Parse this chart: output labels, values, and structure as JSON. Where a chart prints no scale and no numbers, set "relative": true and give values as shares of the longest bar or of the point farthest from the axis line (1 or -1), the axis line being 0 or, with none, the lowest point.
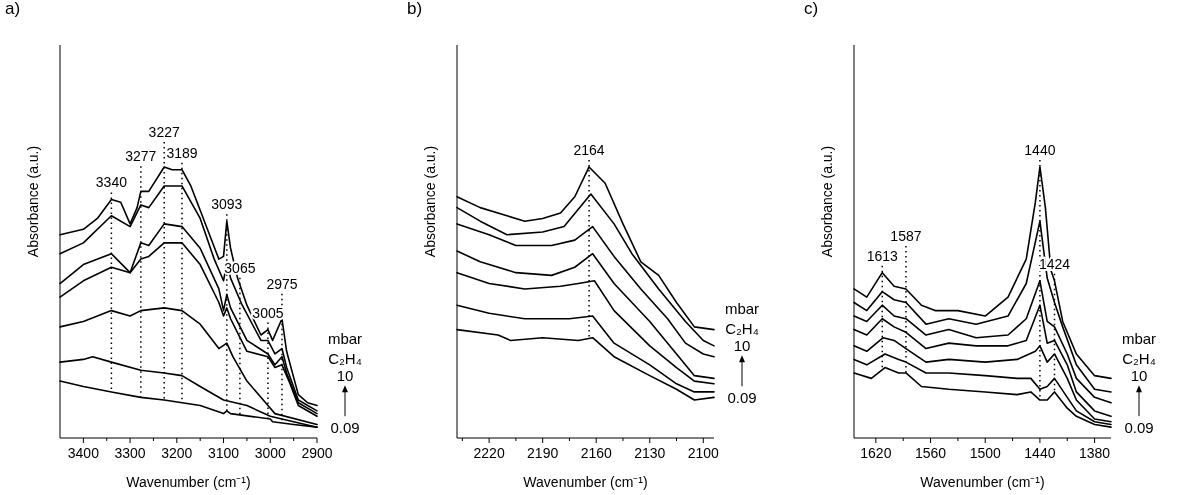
{
  "chart_data": [
    {
      "type": "line",
      "title": "a)",
      "xlabel": "Wavenumber (cm⁻¹)",
      "ylabel": "Absorbance (a.u.)",
      "legend_title": "mbar C₂H₄",
      "relative": true,
      "xlim": [
        3450,
        2900
      ],
      "xticks": [
        3400,
        {
          "value": 3350,
          "label": null
        },
        3300,
        {
          "value": 3250,
          "label": null
        },
        3200,
        {
          "value": 3150,
          "label": null
        },
        3100,
        {
          "value": 3050,
          "label": null
        },
        3000,
        {
          "value": 2950,
          "label": null
        },
        2900
      ],
      "ref_lines": [
        {
          "axis": "x",
          "value": 3340,
          "label": "3340",
          "line_style": "dotted"
        },
        {
          "axis": "x",
          "value": 3277,
          "label": "3277",
          "line_style": "dotted"
        },
        {
          "axis": "x",
          "value": 3227,
          "label": "3227",
          "line_style": "dotted"
        },
        {
          "axis": "x",
          "value": 3189,
          "label": "3189",
          "line_style": "dotted"
        },
        {
          "axis": "x",
          "value": 3093,
          "label": "3093",
          "line_style": "dotted"
        },
        {
          "axis": "x",
          "value": 3065,
          "label": "3065",
          "line_style": "dotted"
        },
        {
          "axis": "x",
          "value": 3005,
          "label": "3005",
          "line_style": "dotted"
        },
        {
          "axis": "x",
          "value": 2975,
          "label": "2975",
          "line_style": "dotted"
        }
      ],
      "series": [
        {
          "name": "0.09",
          "color": "#000000",
          "x": [
            3450,
            3400,
            3340,
            3277,
            3227,
            3150,
            3100,
            3093,
            3085,
            3000,
            2995,
            2950,
            2900
          ],
          "values": [
            0.21,
            0.19,
            0.17,
            0.15,
            0.14,
            0.12,
            0.09,
            0.1,
            0.09,
            0.07,
            0.06,
            0.05,
            0.04
          ]
        },
        {
          "color": "#000000",
          "x": [
            3450,
            3400,
            3380,
            3340,
            3277,
            3227,
            3189,
            3150,
            3100,
            3050,
            3000,
            2950,
            2900
          ],
          "values": [
            0.28,
            0.29,
            0.3,
            0.28,
            0.25,
            0.24,
            0.23,
            0.19,
            0.14,
            0.12,
            0.08,
            0.06,
            0.04
          ]
        },
        {
          "color": "#000000",
          "x": [
            3450,
            3400,
            3370,
            3340,
            3300,
            3277,
            3227,
            3189,
            3150,
            3110,
            3093,
            3080,
            3050,
            3010,
            3005,
            2990,
            2900
          ],
          "values": [
            0.41,
            0.43,
            0.45,
            0.47,
            0.45,
            0.47,
            0.48,
            0.47,
            0.42,
            0.33,
            0.35,
            0.3,
            0.21,
            0.13,
            0.12,
            0.09,
            0.05
          ]
        },
        {
          "color": "#000000",
          "x": [
            3450,
            3400,
            3340,
            3300,
            3277,
            3260,
            3227,
            3189,
            3150,
            3110,
            3100,
            3093,
            3085,
            3050,
            3005,
            2990,
            2975,
            2960,
            2940,
            2900
          ],
          "values": [
            0.52,
            0.58,
            0.63,
            0.61,
            0.66,
            0.67,
            0.72,
            0.72,
            0.64,
            0.5,
            0.45,
            0.48,
            0.44,
            0.32,
            0.3,
            0.26,
            0.27,
            0.21,
            0.12,
            0.08
          ]
        },
        {
          "color": "#000000",
          "x": [
            3450,
            3400,
            3340,
            3300,
            3277,
            3260,
            3227,
            3189,
            3150,
            3110,
            3100,
            3093,
            3085,
            3050,
            3005,
            2990,
            2975,
            2965,
            2940,
            2900
          ],
          "values": [
            0.57,
            0.64,
            0.68,
            0.61,
            0.72,
            0.71,
            0.79,
            0.78,
            0.7,
            0.55,
            0.47,
            0.53,
            0.48,
            0.36,
            0.31,
            0.27,
            0.3,
            0.24,
            0.13,
            0.09
          ]
        },
        {
          "color": "#000000",
          "x": [
            3450,
            3400,
            3340,
            3300,
            3277,
            3260,
            3227,
            3189,
            3150,
            3120,
            3100,
            3093,
            3085,
            3060,
            3020,
            3005,
            2990,
            2975,
            2965,
            2940,
            2900
          ],
          "values": [
            0.68,
            0.72,
            0.82,
            0.78,
            0.86,
            0.85,
            0.93,
            0.93,
            0.81,
            0.66,
            0.58,
            0.65,
            0.59,
            0.49,
            0.36,
            0.36,
            0.31,
            0.33,
            0.26,
            0.14,
            0.1
          ]
        },
        {
          "name": "10",
          "color": "#000000",
          "x": [
            3450,
            3400,
            3370,
            3340,
            3320,
            3300,
            3285,
            3277,
            3260,
            3227,
            3210,
            3189,
            3170,
            3150,
            3130,
            3110,
            3100,
            3093,
            3085,
            3070,
            3050,
            3020,
            3005,
            2995,
            2975,
            2965,
            2940,
            2920,
            2900
          ],
          "values": [
            0.75,
            0.77,
            0.81,
            0.88,
            0.87,
            0.79,
            0.85,
            0.91,
            0.91,
            1,
            0.99,
            0.99,
            0.93,
            0.84,
            0.75,
            0.66,
            0.67,
            0.8,
            0.7,
            0.59,
            0.49,
            0.38,
            0.4,
            0.36,
            0.44,
            0.32,
            0.16,
            0.13,
            0.12
          ]
        }
      ]
    },
    {
      "type": "line",
      "title": "b)",
      "xlabel": "Wavenumber (cm⁻¹)",
      "ylabel": "Absorbance (a.u.)",
      "legend_title": "mbar C₂H₄",
      "relative": true,
      "xlim": [
        2238,
        2094
      ],
      "xticks": [
        {
          "value": 2235,
          "label": null
        },
        2220,
        {
          "value": 2205,
          "label": null
        },
        2190,
        {
          "value": 2175,
          "label": null
        },
        2160,
        {
          "value": 2145,
          "label": null
        },
        2130,
        {
          "value": 2115,
          "label": null
        },
        2100
      ],
      "ref_lines": [
        {
          "axis": "x",
          "value": 2164,
          "label": "2164",
          "line_style": "dotted"
        }
      ],
      "series": [
        {
          "name": "0.09",
          "color": "#000000",
          "x": [
            2238,
            2215,
            2208,
            2190,
            2170,
            2162,
            2150,
            2130,
            2115,
            2105,
            2094
          ],
          "values": [
            0.4,
            0.38,
            0.36,
            0.37,
            0.36,
            0.37,
            0.3,
            0.23,
            0.18,
            0.14,
            0.15
          ]
        },
        {
          "color": "#000000",
          "x": [
            2238,
            2220,
            2200,
            2175,
            2162,
            2150,
            2130,
            2115,
            2105,
            2094
          ],
          "values": [
            0.49,
            0.46,
            0.44,
            0.44,
            0.45,
            0.35,
            0.27,
            0.2,
            0.17,
            0.17
          ]
        },
        {
          "color": "#000000",
          "x": [
            2238,
            2220,
            2200,
            2180,
            2170,
            2161,
            2150,
            2130,
            2115,
            2105,
            2094
          ],
          "values": [
            0.61,
            0.57,
            0.55,
            0.56,
            0.57,
            0.58,
            0.47,
            0.34,
            0.26,
            0.21,
            0.2
          ]
        },
        {
          "color": "#000000",
          "x": [
            2238,
            2225,
            2205,
            2185,
            2172,
            2162,
            2150,
            2130,
            2115,
            2105,
            2094
          ],
          "values": [
            0.69,
            0.65,
            0.61,
            0.6,
            0.63,
            0.68,
            0.57,
            0.43,
            0.31,
            0.23,
            0.22
          ]
        },
        {
          "color": "#000000",
          "x": [
            2238,
            2220,
            2205,
            2185,
            2172,
            2162,
            2150,
            2135,
            2120,
            2110,
            2100,
            2094
          ],
          "values": [
            0.79,
            0.75,
            0.71,
            0.71,
            0.73,
            0.78,
            0.67,
            0.55,
            0.44,
            0.35,
            0.31,
            0.3
          ]
        },
        {
          "color": "#000000",
          "x": [
            2238,
            2225,
            2210,
            2190,
            2178,
            2163,
            2150,
            2140,
            2125,
            2110,
            2100,
            2094
          ],
          "values": [
            0.85,
            0.8,
            0.75,
            0.76,
            0.78,
            0.9,
            0.79,
            0.68,
            0.55,
            0.43,
            0.36,
            0.34
          ]
        },
        {
          "name": "10",
          "color": "#000000",
          "x": [
            2238,
            2225,
            2210,
            2200,
            2190,
            2180,
            2172,
            2164,
            2155,
            2145,
            2135,
            2125,
            2115,
            2105,
            2094
          ],
          "values": [
            0.89,
            0.85,
            0.82,
            0.8,
            0.81,
            0.83,
            0.89,
            1,
            0.94,
            0.79,
            0.65,
            0.6,
            0.5,
            0.41,
            0.4
          ]
        }
      ]
    },
    {
      "type": "line",
      "title": "c)",
      "xlabel": "Wavenumber (cm⁻¹)",
      "ylabel": "Absorbance (a.u.)",
      "legend_title": "mbar C₂H₄",
      "relative": true,
      "xlim": [
        1644,
        1362
      ],
      "xticks": [
        1620,
        {
          "value": 1590,
          "label": null
        },
        1560,
        {
          "value": 1530,
          "label": null
        },
        1500,
        {
          "value": 1470,
          "label": null
        },
        1440,
        {
          "value": 1410,
          "label": null
        },
        1380
      ],
      "ref_lines": [
        {
          "axis": "x",
          "value": 1613,
          "label": "1613",
          "line_style": "dotted"
        },
        {
          "axis": "x",
          "value": 1587,
          "label": "1587",
          "line_style": "dotted"
        },
        {
          "axis": "x",
          "value": 1440,
          "label": "1440",
          "line_style": "dotted"
        },
        {
          "axis": "x",
          "value": 1424,
          "label": "1424",
          "line_style": "dotted"
        }
      ],
      "series": [
        {
          "name": "0.09",
          "color": "#000000",
          "x": [
            1644,
            1625,
            1610,
            1595,
            1587,
            1570,
            1540,
            1500,
            1465,
            1450,
            1440,
            1432,
            1424,
            1410,
            1400,
            1380,
            1362
          ],
          "values": [
            0.24,
            0.22,
            0.26,
            0.24,
            0.24,
            0.19,
            0.18,
            0.17,
            0.16,
            0.17,
            0.14,
            0.14,
            0.17,
            0.11,
            0.08,
            0.05,
            0.04
          ]
        },
        {
          "color": "#000000",
          "x": [
            1644,
            1630,
            1610,
            1595,
            1587,
            1565,
            1540,
            1500,
            1465,
            1450,
            1440,
            1432,
            1424,
            1410,
            1400,
            1380,
            1362
          ],
          "values": [
            0.29,
            0.27,
            0.31,
            0.29,
            0.28,
            0.24,
            0.24,
            0.23,
            0.22,
            0.22,
            0.18,
            0.19,
            0.22,
            0.15,
            0.1,
            0.06,
            0.05
          ]
        },
        {
          "color": "#000000",
          "x": [
            1644,
            1630,
            1612,
            1600,
            1587,
            1565,
            1540,
            1500,
            1465,
            1445,
            1440,
            1432,
            1424,
            1410,
            1400,
            1380,
            1362
          ],
          "values": [
            0.34,
            0.32,
            0.37,
            0.36,
            0.33,
            0.28,
            0.29,
            0.28,
            0.29,
            0.32,
            0.34,
            0.28,
            0.31,
            0.22,
            0.14,
            0.07,
            0.06
          ]
        },
        {
          "color": "#000000",
          "x": [
            1644,
            1630,
            1613,
            1600,
            1587,
            1565,
            1540,
            1510,
            1475,
            1455,
            1440,
            1432,
            1424,
            1410,
            1400,
            1380,
            1362
          ],
          "values": [
            0.4,
            0.38,
            0.44,
            0.41,
            0.39,
            0.33,
            0.35,
            0.34,
            0.34,
            0.36,
            0.49,
            0.35,
            0.36,
            0.27,
            0.17,
            0.1,
            0.08
          ]
        },
        {
          "color": "#000000",
          "x": [
            1644,
            1630,
            1613,
            1600,
            1587,
            1565,
            1540,
            1510,
            1475,
            1455,
            1440,
            1432,
            1424,
            1410,
            1400,
            1380,
            1362
          ],
          "values": [
            0.45,
            0.43,
            0.49,
            0.45,
            0.44,
            0.38,
            0.4,
            0.37,
            0.38,
            0.44,
            0.58,
            0.43,
            0.41,
            0.31,
            0.22,
            0.15,
            0.13
          ]
        },
        {
          "color": "#000000",
          "x": [
            1644,
            1630,
            1613,
            1600,
            1587,
            1565,
            1540,
            1510,
            1475,
            1455,
            1440,
            1432,
            1424,
            1415,
            1400,
            1380,
            1362
          ],
          "values": [
            0.5,
            0.47,
            0.54,
            0.51,
            0.5,
            0.42,
            0.44,
            0.42,
            0.45,
            0.57,
            0.8,
            0.59,
            0.5,
            0.41,
            0.27,
            0.18,
            0.17
          ]
        },
        {
          "name": "10",
          "color": "#000000",
          "x": [
            1644,
            1630,
            1613,
            1600,
            1587,
            1570,
            1555,
            1530,
            1500,
            1475,
            1455,
            1445,
            1440,
            1434,
            1428,
            1424,
            1415,
            1400,
            1380,
            1362
          ],
          "values": [
            0.55,
            0.52,
            0.61,
            0.56,
            0.55,
            0.49,
            0.47,
            0.47,
            0.45,
            0.52,
            0.66,
            0.87,
            1,
            0.85,
            0.62,
            0.58,
            0.43,
            0.31,
            0.23,
            0.22
          ]
        }
      ]
    }
  ]
}
